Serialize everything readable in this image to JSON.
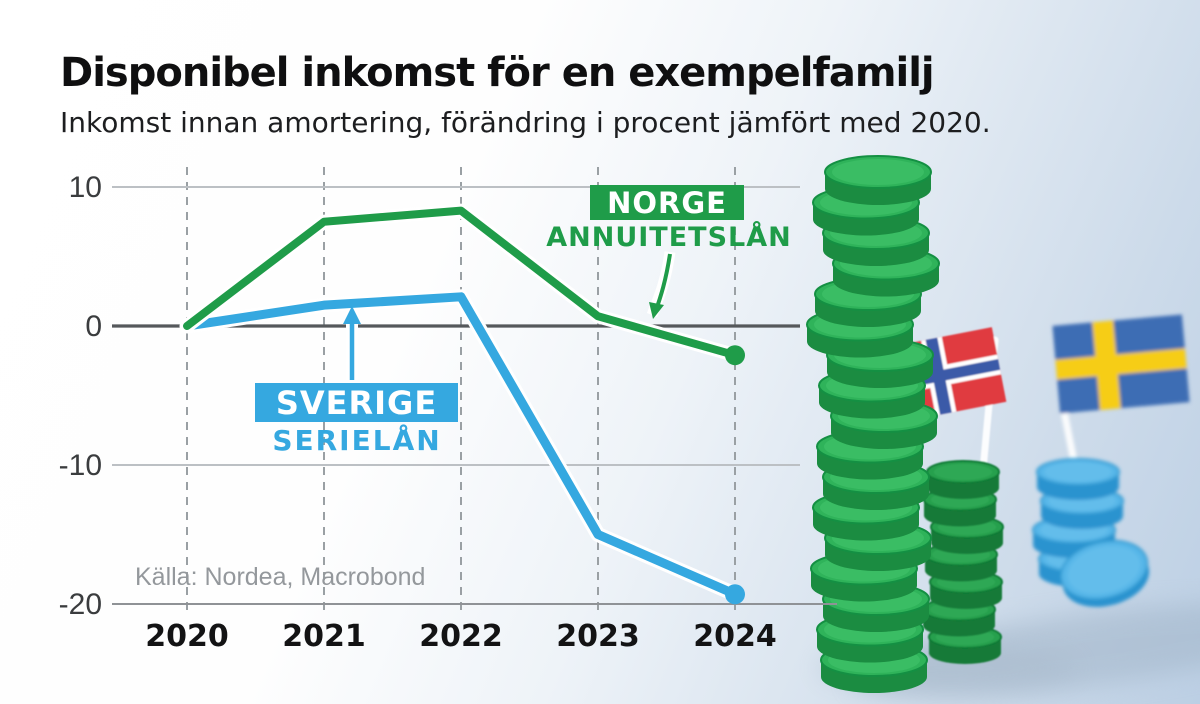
{
  "header": {
    "title": "Disponibel inkomst för en exempelfamilj",
    "subtitle": "Inkomst innan amortering, förändring i procent jämfört med 2020."
  },
  "chart_data": {
    "type": "line",
    "title": "Disponibel inkomst för en exempelfamilj",
    "subtitle": "Inkomst innan amortering, förändring i procent jämfört med 2020.",
    "categories": [
      "2020",
      "2021",
      "2022",
      "2023",
      "2024"
    ],
    "series": [
      {
        "name": "Norge annuitetslån",
        "label": "NORGE",
        "sublabel": "ANNUITETSLÅN",
        "color": "#1f9c49",
        "values": [
          0,
          7.5,
          8.3,
          0.7,
          -2.1
        ]
      },
      {
        "name": "Sverige serielån",
        "label": "SVERIGE",
        "sublabel": "SERIELÅN",
        "color": "#35a8e0",
        "values": [
          0,
          1.5,
          2.1,
          -15,
          -19.3
        ]
      }
    ],
    "y_ticks": [
      10,
      0,
      -10,
      -20
    ],
    "ylim": [
      -21,
      11
    ],
    "xlabel": "",
    "ylabel": "",
    "grid": "horizontal solid + vertical dashed per year",
    "legend_position": "inline annotations with arrows",
    "source": "Källa: Nordea, Macrobond"
  },
  "illustration": {
    "description": "stacks of coins with country flags",
    "items": [
      "tall-green-coin-stack",
      "small-green-coin-stack",
      "blue-coin-stack",
      "norway-flag",
      "sweden-flag"
    ],
    "colors": {
      "green_coin": "#2fb35a",
      "blue_coin": "#57b6e8",
      "norway_flag_red": "#e03a40",
      "norway_flag_blue": "#3a5aa8",
      "sweden_flag_blue": "#3e6db4",
      "sweden_flag_yellow": "#f6cd14"
    }
  }
}
